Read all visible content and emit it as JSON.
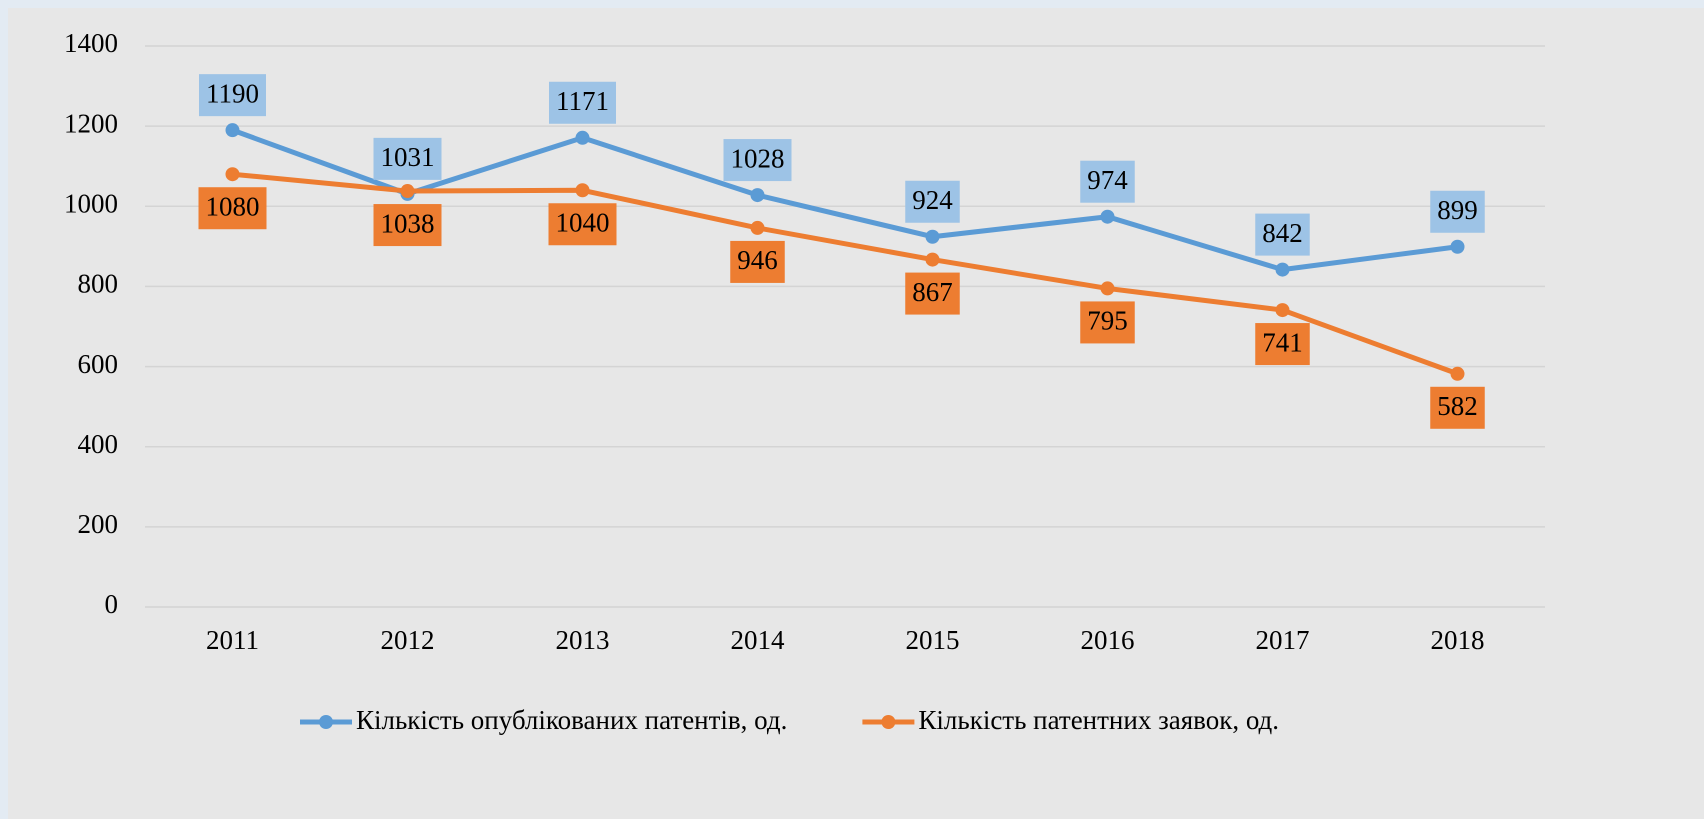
{
  "chart_data": {
    "type": "line",
    "categories": [
      "2011",
      "2012",
      "2013",
      "2014",
      "2015",
      "2016",
      "2017",
      "2018"
    ],
    "series": [
      {
        "name": "Кількість опублікованих патентів, од.",
        "color": "#5b9bd5",
        "label_fill": "#9dc3e6",
        "label_position": "above",
        "values": [
          1190,
          1031,
          1171,
          1028,
          924,
          974,
          842,
          899
        ]
      },
      {
        "name": "Кількість патентних заявок, од.",
        "color": "#ed7d31",
        "label_fill": "#ed7d31",
        "label_position": "below",
        "values": [
          1080,
          1038,
          1040,
          946,
          867,
          795,
          741,
          582
        ]
      }
    ],
    "ylim": [
      0,
      1400
    ],
    "yticks": [
      0,
      200,
      400,
      600,
      800,
      1000,
      1200,
      1400
    ],
    "grid": true,
    "legend": "bottom"
  }
}
